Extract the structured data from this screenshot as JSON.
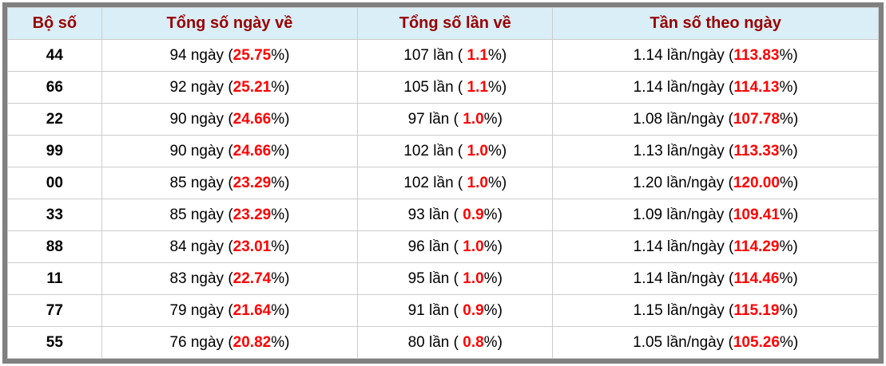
{
  "table": {
    "columns": [
      "Bộ số",
      "Tổng số ngày về",
      "Tổng số lần về",
      "Tần số theo ngày"
    ],
    "pct_suffix": "%)",
    "rows": [
      {
        "pair": "44",
        "days_text": "94 ngày (",
        "days_pct": "25.75",
        "times_text": "107 lần ( ",
        "times_pct": "1.1",
        "freq_text": "1.14 lần/ngày (",
        "freq_pct": "113.83"
      },
      {
        "pair": "66",
        "days_text": "92 ngày (",
        "days_pct": "25.21",
        "times_text": "105 lần ( ",
        "times_pct": "1.1",
        "freq_text": "1.14 lần/ngày (",
        "freq_pct": "114.13"
      },
      {
        "pair": "22",
        "days_text": "90 ngày (",
        "days_pct": "24.66",
        "times_text": "97 lần ( ",
        "times_pct": "1.0",
        "freq_text": "1.08 lần/ngày (",
        "freq_pct": "107.78"
      },
      {
        "pair": "99",
        "days_text": "90 ngày (",
        "days_pct": "24.66",
        "times_text": "102 lần ( ",
        "times_pct": "1.0",
        "freq_text": "1.13 lần/ngày (",
        "freq_pct": "113.33"
      },
      {
        "pair": "00",
        "days_text": "85 ngày (",
        "days_pct": "23.29",
        "times_text": "102 lần ( ",
        "times_pct": "1.0",
        "freq_text": "1.20 lần/ngày (",
        "freq_pct": "120.00"
      },
      {
        "pair": "33",
        "days_text": "85 ngày (",
        "days_pct": "23.29",
        "times_text": "93 lần ( ",
        "times_pct": "0.9",
        "freq_text": "1.09 lần/ngày (",
        "freq_pct": "109.41"
      },
      {
        "pair": "88",
        "days_text": "84 ngày (",
        "days_pct": "23.01",
        "times_text": "96 lần ( ",
        "times_pct": "1.0",
        "freq_text": "1.14 lần/ngày (",
        "freq_pct": "114.29"
      },
      {
        "pair": "11",
        "days_text": "83 ngày (",
        "days_pct": "22.74",
        "times_text": "95 lần ( ",
        "times_pct": "1.0",
        "freq_text": "1.14 lần/ngày (",
        "freq_pct": "114.46"
      },
      {
        "pair": "77",
        "days_text": "79 ngày (",
        "days_pct": "21.64",
        "times_text": "91 lần ( ",
        "times_pct": "0.9",
        "freq_text": "1.15 lần/ngày (",
        "freq_pct": "115.19"
      },
      {
        "pair": "55",
        "days_text": "76 ngày (",
        "days_pct": "20.82",
        "times_text": "80 lần ( ",
        "times_pct": "0.8",
        "freq_text": "1.05 lần/ngày (",
        "freq_pct": "105.26"
      }
    ],
    "colors": {
      "header_bg": "#d9eef7",
      "header_text": "#990000",
      "highlight_red": "#ff0000",
      "cell_border": "#cccccc",
      "frame_border": "#808080"
    }
  }
}
